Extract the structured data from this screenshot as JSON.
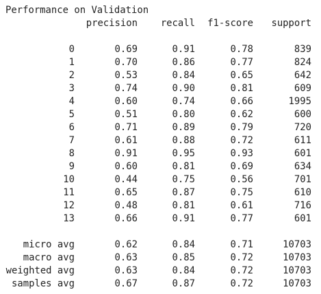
{
  "report": {
    "title": "Performance on Validation",
    "headers": [
      "precision",
      "recall",
      "f1-score",
      "support"
    ],
    "class_rows": [
      {
        "label": "0",
        "precision": "0.69",
        "recall": "0.91",
        "f1": "0.78",
        "support": "839"
      },
      {
        "label": "1",
        "precision": "0.70",
        "recall": "0.86",
        "f1": "0.77",
        "support": "824"
      },
      {
        "label": "2",
        "precision": "0.53",
        "recall": "0.84",
        "f1": "0.65",
        "support": "642"
      },
      {
        "label": "3",
        "precision": "0.74",
        "recall": "0.90",
        "f1": "0.81",
        "support": "609"
      },
      {
        "label": "4",
        "precision": "0.60",
        "recall": "0.74",
        "f1": "0.66",
        "support": "1995"
      },
      {
        "label": "5",
        "precision": "0.51",
        "recall": "0.80",
        "f1": "0.62",
        "support": "600"
      },
      {
        "label": "6",
        "precision": "0.71",
        "recall": "0.89",
        "f1": "0.79",
        "support": "720"
      },
      {
        "label": "7",
        "precision": "0.61",
        "recall": "0.88",
        "f1": "0.72",
        "support": "611"
      },
      {
        "label": "8",
        "precision": "0.91",
        "recall": "0.95",
        "f1": "0.93",
        "support": "601"
      },
      {
        "label": "9",
        "precision": "0.60",
        "recall": "0.81",
        "f1": "0.69",
        "support": "634"
      },
      {
        "label": "10",
        "precision": "0.44",
        "recall": "0.75",
        "f1": "0.56",
        "support": "701"
      },
      {
        "label": "11",
        "precision": "0.65",
        "recall": "0.87",
        "f1": "0.75",
        "support": "610"
      },
      {
        "label": "12",
        "precision": "0.48",
        "recall": "0.81",
        "f1": "0.61",
        "support": "716"
      },
      {
        "label": "13",
        "precision": "0.66",
        "recall": "0.91",
        "f1": "0.77",
        "support": "601"
      }
    ],
    "avg_rows": [
      {
        "label": "micro avg",
        "precision": "0.62",
        "recall": "0.84",
        "f1": "0.71",
        "support": "10703"
      },
      {
        "label": "macro avg",
        "precision": "0.63",
        "recall": "0.85",
        "f1": "0.72",
        "support": "10703"
      },
      {
        "label": "weighted avg",
        "precision": "0.63",
        "recall": "0.84",
        "f1": "0.72",
        "support": "10703"
      },
      {
        "label": "samples avg",
        "precision": "0.67",
        "recall": "0.87",
        "f1": "0.72",
        "support": "10703"
      }
    ]
  }
}
